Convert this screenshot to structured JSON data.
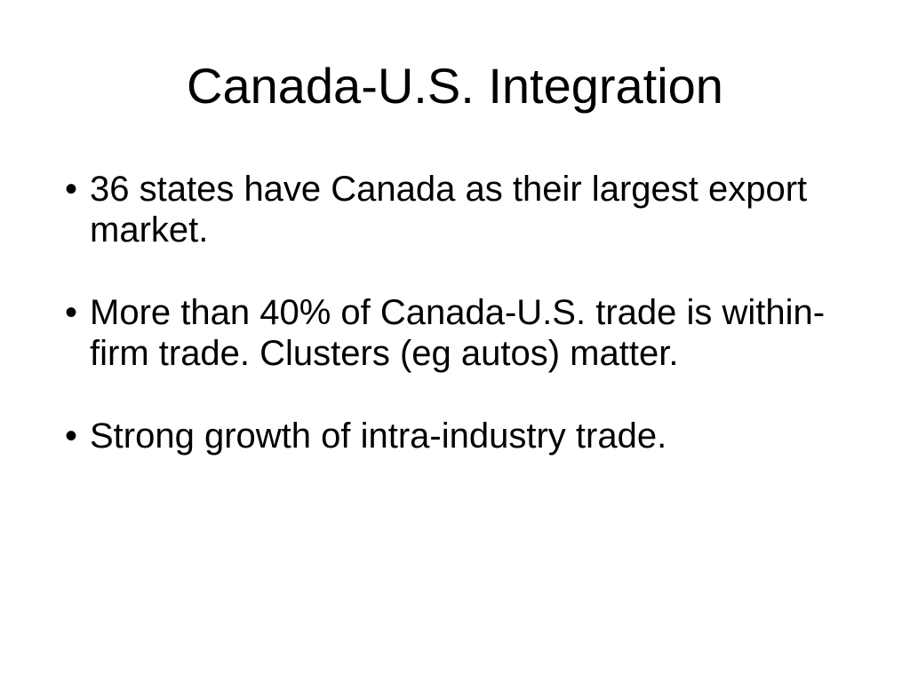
{
  "slide": {
    "title": "Canada-U.S. Integration",
    "bullets": [
      "36 states have Canada as their largest export market.",
      "More than 40% of Canada-U.S. trade is within-firm trade.  Clusters (eg autos) matter.",
      "Strong growth of intra-industry trade."
    ],
    "bullet_glyph": "•"
  }
}
